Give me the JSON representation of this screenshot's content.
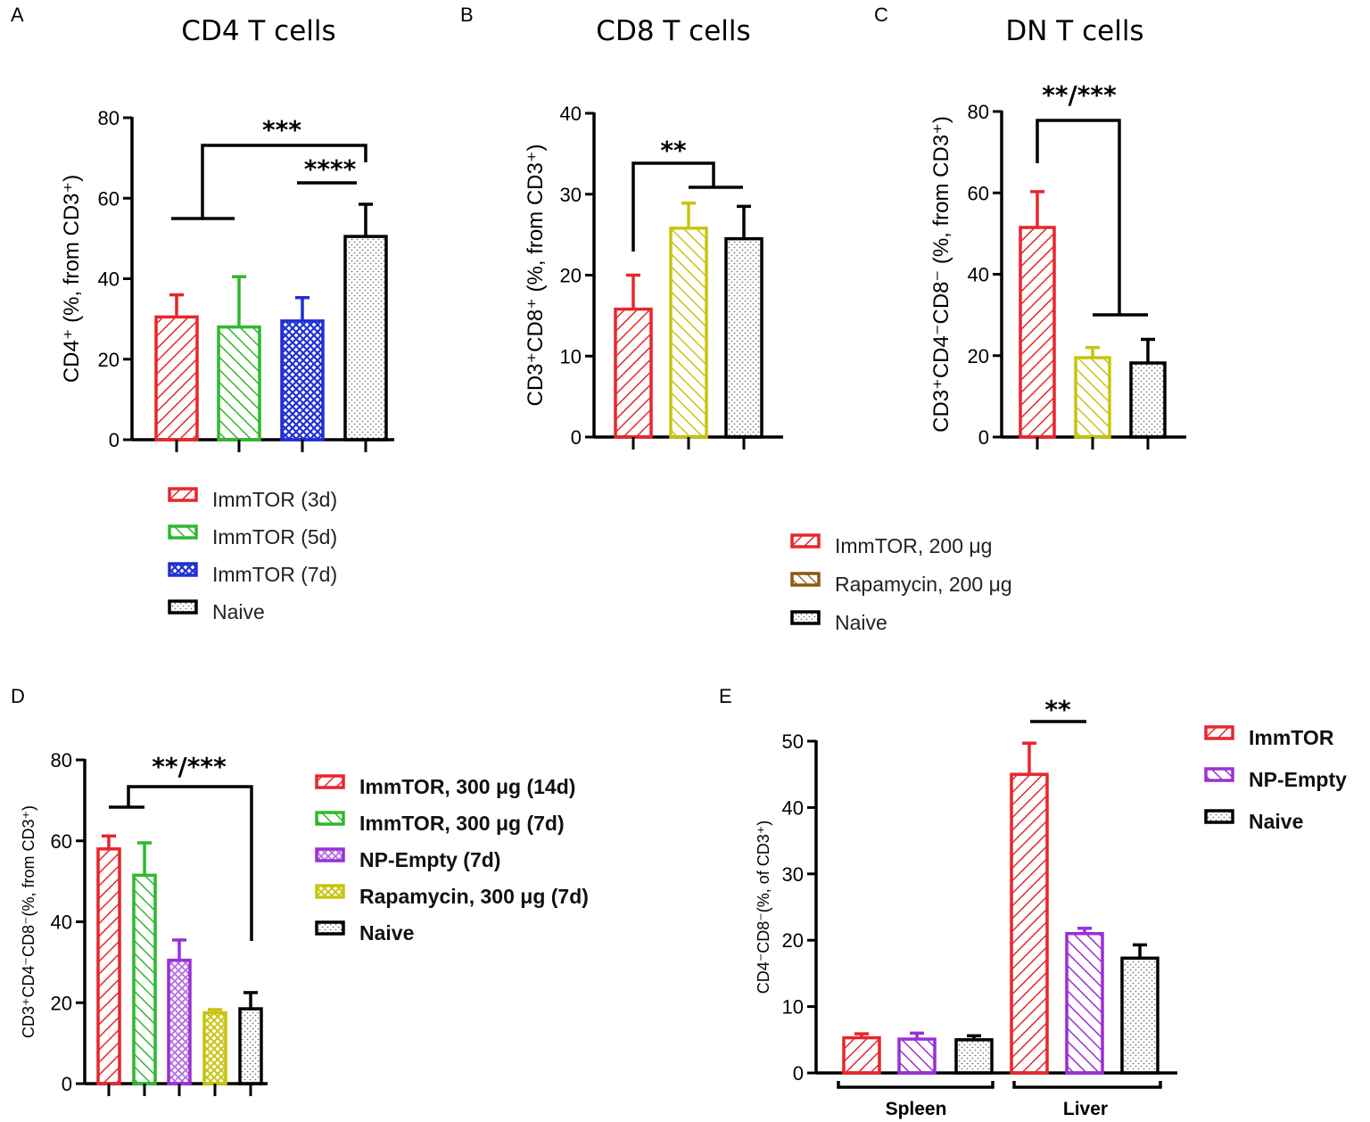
{
  "panels": {
    "A": {
      "label": "A",
      "title": "CD4 T cells"
    },
    "B": {
      "label": "B",
      "title": "CD8 T cells"
    },
    "C": {
      "label": "C",
      "title": "DN T cells"
    },
    "D": {
      "label": "D"
    },
    "E": {
      "label": "E"
    }
  },
  "colors": {
    "red": "#e8262b",
    "green": "#2eb82e",
    "blue": "#1f2fd6",
    "black": "#000000",
    "olive": "#c8c412",
    "purple": "#9b2fd6",
    "brown": "#8a5a14",
    "dots": "#888888"
  },
  "chart_data": [
    {
      "type": "bar",
      "panel": "A",
      "title": "CD4 T cells",
      "ylabel": "CD4⁺ (%, from CD3⁺)",
      "ylim": [
        0,
        80
      ],
      "yticks": [
        "0",
        "20",
        "40",
        "60",
        "80"
      ],
      "categories": [
        "ImmTOR (3d)",
        "ImmTOR (5d)",
        "ImmTOR (7d)",
        "Naive"
      ],
      "values": [
        30.5,
        28,
        29.5,
        50.5
      ],
      "errors": [
        5.5,
        12.5,
        5.8,
        8
      ],
      "significance": [
        "***",
        "****"
      ]
    },
    {
      "type": "bar",
      "panel": "B",
      "title": "CD8 T cells",
      "ylabel": "CD3⁺CD8⁺ (%, from CD3⁺)",
      "ylim": [
        0,
        40
      ],
      "yticks": [
        "0",
        "10",
        "20",
        "30",
        "40"
      ],
      "categories": [
        "ImmTOR, 200 μg",
        "Rapamycin, 200 μg",
        "Naive"
      ],
      "values": [
        15.8,
        25.8,
        24.5
      ],
      "errors": [
        4.2,
        3.1,
        4
      ],
      "significance": [
        "**"
      ]
    },
    {
      "type": "bar",
      "panel": "C",
      "title": "DN T cells",
      "ylabel": "CD3⁺CD4⁻CD8⁻ (%, from CD3⁺)",
      "ylim": [
        0,
        80
      ],
      "yticks": [
        "0",
        "20",
        "40",
        "60",
        "80"
      ],
      "categories": [
        "ImmTOR, 200 μg",
        "Rapamycin, 200 μg",
        "Naive"
      ],
      "values": [
        51.5,
        19.5,
        18.2
      ],
      "errors": [
        8.8,
        2.5,
        5.8
      ],
      "significance": [
        "**/***"
      ]
    },
    {
      "type": "bar",
      "panel": "D",
      "ylabel": "CD3⁺CD4⁻CD8⁻(%, from CD3⁺)",
      "ylim": [
        0,
        80
      ],
      "yticks": [
        "0",
        "20",
        "40",
        "60",
        "80"
      ],
      "categories": [
        "ImmTOR, 300 μg (14d)",
        "ImmTOR, 300 μg (7d)",
        "NP-Empty (7d)",
        "Rapamycin,  300 μg (7d)",
        "Naive"
      ],
      "values": [
        58,
        51.5,
        30.5,
        17.5,
        18.5
      ],
      "errors": [
        3.2,
        8,
        5,
        0.8,
        4
      ],
      "significance": [
        "**/***"
      ]
    },
    {
      "type": "bar",
      "panel": "E",
      "ylabel": "CD4⁻CD8⁻(%, of CD3⁺)",
      "ylim": [
        0,
        50
      ],
      "yticks": [
        "0",
        "10",
        "20",
        "30",
        "40",
        "50"
      ],
      "groups": [
        "Spleen",
        "Liver"
      ],
      "series": [
        {
          "name": "ImmTOR",
          "values": [
            5.3,
            45
          ]
        },
        {
          "name": "NP-Empty",
          "values": [
            5.1,
            21
          ]
        },
        {
          "name": "Naive",
          "values": [
            5,
            17.3
          ]
        }
      ],
      "errors": [
        [
          0.6,
          4.7
        ],
        [
          0.9,
          0.8
        ],
        [
          0.6,
          2
        ]
      ],
      "significance": [
        "**"
      ]
    }
  ],
  "legends": {
    "A": [
      "ImmTOR (3d)",
      "ImmTOR (5d)",
      "ImmTOR (7d)",
      "Naive"
    ],
    "BC": [
      "ImmTOR, 200 μg",
      "Rapamycin,  200 μg",
      "Naive"
    ],
    "D": [
      "ImmTOR, 300 μg (14d)",
      "ImmTOR, 300 μg (7d)",
      "NP-Empty (7d)",
      "Rapamycin,  300 μg (7d)",
      "Naive"
    ],
    "E": [
      "ImmTOR",
      "NP-Empty",
      "Naive"
    ]
  }
}
